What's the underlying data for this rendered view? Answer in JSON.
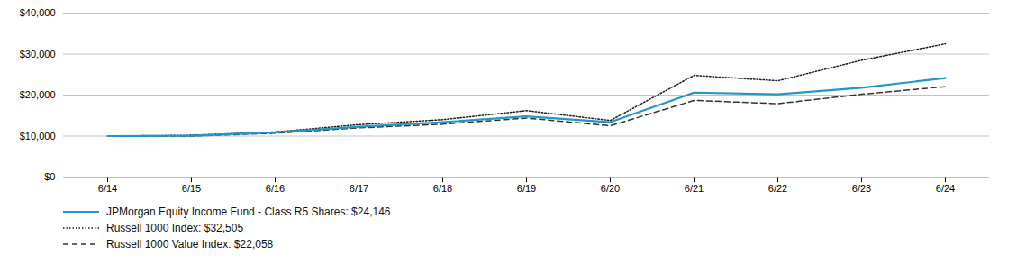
{
  "chart_data": {
    "type": "line",
    "categories": [
      "6/14",
      "6/15",
      "6/16",
      "6/17",
      "6/18",
      "6/19",
      "6/20",
      "6/21",
      "6/22",
      "6/23",
      "6/24"
    ],
    "series": [
      {
        "name": "JPMorgan Equity Income Fund - Class R5 Shares: $24,146",
        "color": "#2196C9",
        "line_style": "solid",
        "values": [
          10000,
          10100,
          10900,
          12300,
          13400,
          14800,
          13400,
          20600,
          20200,
          21800,
          24146
        ]
      },
      {
        "name": "Russell 1000 Index: $32,505",
        "color": "#1a1a1a",
        "line_style": "dotted",
        "values": [
          10000,
          10200,
          11000,
          12800,
          14000,
          16200,
          13800,
          24800,
          23500,
          28500,
          32505
        ]
      },
      {
        "name": "Russell 1000 Value Index: $22,058",
        "color": "#333333",
        "line_style": "dashed",
        "values": [
          10000,
          10000,
          10700,
          12000,
          12900,
          14400,
          12500,
          18700,
          17900,
          20200,
          22058
        ]
      }
    ],
    "ylim": [
      0,
      40000
    ],
    "yticks": [
      {
        "value": 0,
        "label": "$0"
      },
      {
        "value": 10000,
        "label": "$10,000"
      },
      {
        "value": 20000,
        "label": "$20,000"
      },
      {
        "value": 30000,
        "label": "$30,000"
      },
      {
        "value": 40000,
        "label": "$40,000"
      }
    ],
    "grid": true,
    "legend": "lower left"
  }
}
